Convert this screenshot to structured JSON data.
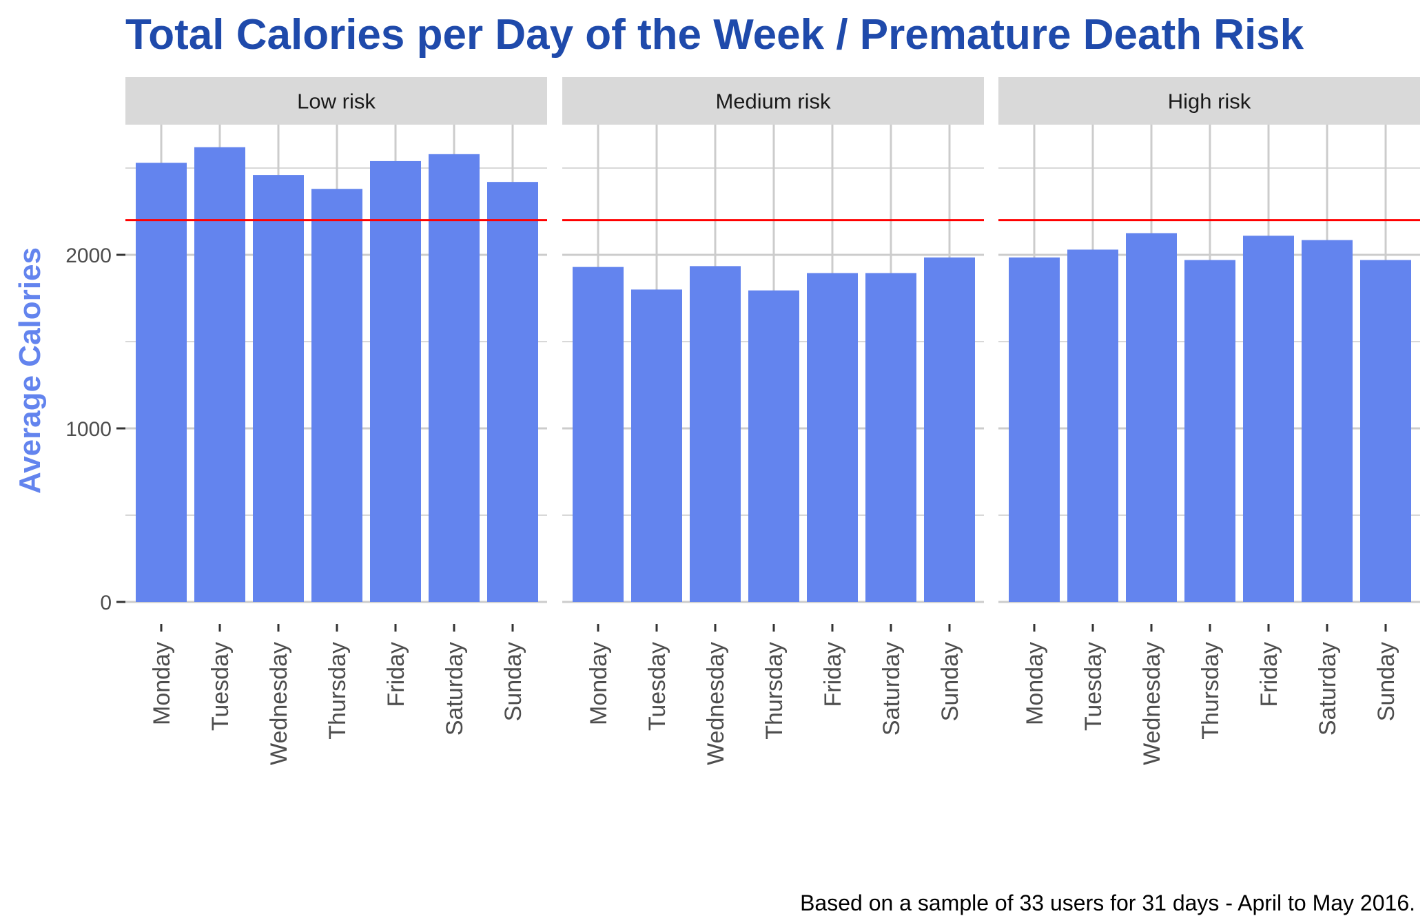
{
  "chart_data": {
    "type": "bar",
    "title": "Total Calories per Day of the Week / Premature Death Risk",
    "ylabel": "Average Calories",
    "xlabel": "",
    "caption": "Based on a sample of 33 users for 31 days - April to May 2016.",
    "categories": [
      "Monday",
      "Tuesday",
      "Wednesday",
      "Thursday",
      "Friday",
      "Saturday",
      "Sunday"
    ],
    "ylim": [
      0,
      2750
    ],
    "y_ticks": [
      0,
      1000,
      2000
    ],
    "reference_line": 2200,
    "grid": true,
    "panels": [
      {
        "name": "Low risk",
        "values": [
          2530,
          2620,
          2460,
          2380,
          2540,
          2580,
          2420
        ]
      },
      {
        "name": "Medium risk",
        "values": [
          1930,
          1800,
          1935,
          1795,
          1895,
          1895,
          1985
        ]
      },
      {
        "name": "High risk",
        "values": [
          1985,
          2030,
          2125,
          1970,
          2110,
          2085,
          1970
        ]
      }
    ]
  },
  "colors": {
    "bar": "#6384ee",
    "reference_line": "#ff0000",
    "title": "#1f4aab",
    "ylabel": "#6384ee",
    "strip_bg": "#d9d9d9",
    "grid": "#cccccc",
    "tick_text": "#4d4d4d"
  }
}
